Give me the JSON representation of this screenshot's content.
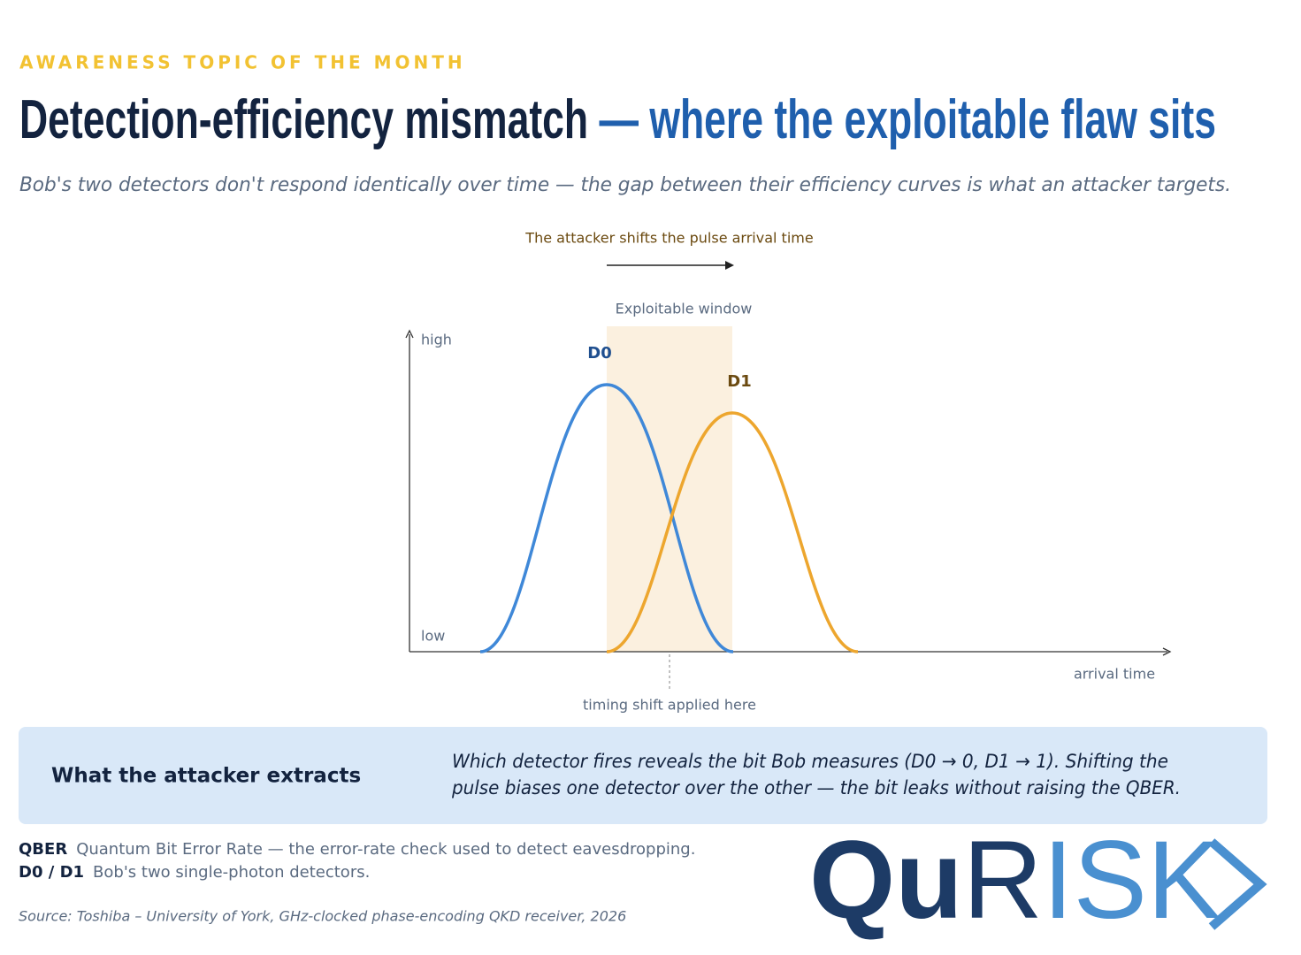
{
  "header": {
    "kicker": "AWARENESS TOPIC OF THE MONTH",
    "title": {
      "main": "Detection-efficiency mismatch",
      "accent": " — where the exploitable flaw sits"
    },
    "subtitle": "Bob's two detectors don't respond identically over time — the gap between their efficiency curves is what an attacker targets."
  },
  "diagram": {
    "annotation": "The attacker shifts the pulse arrival time",
    "window_label": "Exploitable window",
    "y_high": "high",
    "y_low": "low",
    "x_label": "arrival time",
    "curves": [
      "D0",
      "D1"
    ],
    "shift_label": "timing shift applied here"
  },
  "callout": {
    "heading": "What the attacker extracts",
    "body": [
      "Which detector fires reveals the bit Bob measures (D0 → 0, D1 → 1). Shifting the",
      "pulse biases one detector over the other — the bit leaks without raising the QBER."
    ]
  },
  "glossary": [
    {
      "term": "QBER",
      "definition": "Quantum Bit Error Rate — the error-rate check used to detect eavesdropping."
    },
    {
      "term": "D0 / D1",
      "definition": "Bob's two single-photon detectors."
    }
  ],
  "source": "Source: Toshiba – University of York, GHz-clocked phase-encoding QKD receiver, 2026",
  "logo": {
    "part1": "Qu",
    "part2": "R",
    "part3": "ISK"
  }
}
